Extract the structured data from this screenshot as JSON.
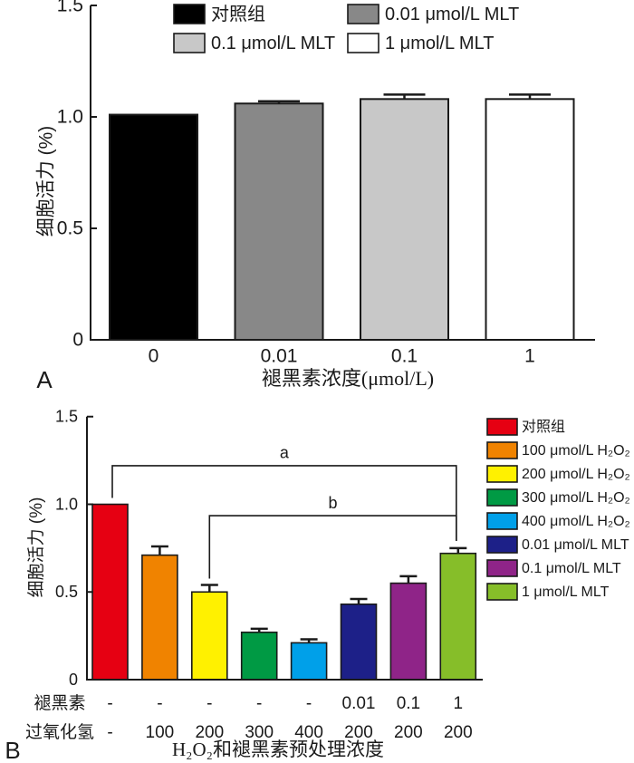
{
  "chart_data": [
    {
      "panel_label": "A",
      "type": "bar",
      "title": "",
      "xlabel": "褪黑素浓度(μmol/L)",
      "ylabel": "细胞活力 (%)",
      "ylim": [
        0,
        1.5
      ],
      "yticks": [
        0,
        0.5,
        1.0,
        1.5
      ],
      "ytick_labels": [
        "0",
        "0.5",
        "1.0",
        "1.5"
      ],
      "grid": false,
      "categories": [
        "0",
        "0.01",
        "0.1",
        "1"
      ],
      "values": [
        1.01,
        1.06,
        1.08,
        1.08
      ],
      "errors": [
        0,
        0.01,
        0.02,
        0.02
      ],
      "colors": [
        "#000000",
        "#888888",
        "#C8C8C8",
        "#FFFFFF"
      ],
      "legend": {
        "position": "top",
        "columns": 2,
        "entries": [
          {
            "label": "对照组",
            "color": "#000000"
          },
          {
            "label": "0.01 μmol/L MLT",
            "color": "#888888"
          },
          {
            "label": "0.1 μmol/L MLT",
            "color": "#C8C8C8"
          },
          {
            "label": "1 μmol/L MLT",
            "color": "#FFFFFF"
          }
        ]
      }
    },
    {
      "panel_label": "B",
      "type": "bar",
      "title": "",
      "xlabel": "H₂O₂和褪黑素预处理浓度",
      "ylabel": "细胞活力 (%)",
      "ylim": [
        0,
        1.5
      ],
      "yticks": [
        0,
        0.5,
        1.0,
        1.5
      ],
      "ytick_labels": [
        "0",
        "0.5",
        "1.0",
        "1.5"
      ],
      "grid": false,
      "categories": [
        "对照组",
        "100 μmol/L H₂O₂",
        "200 μmol/L H₂O₂",
        "300 μmol/L H₂O₂",
        "400 μmol/L H₂O₂",
        "0.01 μmol/L MLT",
        "0.1 μmol/L MLT",
        "1 μmol/L MLT"
      ],
      "values": [
        1.0,
        0.71,
        0.5,
        0.27,
        0.21,
        0.43,
        0.55,
        0.72
      ],
      "errors": [
        0,
        0.05,
        0.04,
        0.02,
        0.02,
        0.03,
        0.04,
        0.03
      ],
      "colors": [
        "#E60012",
        "#F08300",
        "#FFF100",
        "#009A44",
        "#00A0E9",
        "#1D2088",
        "#8F2488",
        "#86BE29"
      ],
      "legend": {
        "position": "right",
        "columns": 1,
        "entries": [
          {
            "label": "对照组",
            "color": "#E60012"
          },
          {
            "label": "100 μmol/L H₂O₂",
            "color": "#F08300"
          },
          {
            "label": "200 μmol/L H₂O₂",
            "color": "#FFF100"
          },
          {
            "label": "300 μmol/L H₂O₂",
            "color": "#009A44"
          },
          {
            "label": "400 μmol/L H₂O₂",
            "color": "#00A0E9"
          },
          {
            "label": "0.01 μmol/L MLT",
            "color": "#1D2088"
          },
          {
            "label": "0.1 μmol/L MLT",
            "color": "#8F2488"
          },
          {
            "label": "1 μmol/L MLT",
            "color": "#86BE29"
          }
        ]
      },
      "treatment_table": [
        {
          "label": "褪黑素",
          "values": [
            "-",
            "-",
            "-",
            "-",
            "-",
            "0.01",
            "0.1",
            "1"
          ]
        },
        {
          "label": "过氧化氢",
          "values": [
            "-",
            "100",
            "200",
            "300",
            "400",
            "200",
            "200",
            "200"
          ]
        }
      ],
      "annotations": [
        {
          "label": "a",
          "from_group": 0,
          "to_group": 7
        },
        {
          "label": "b",
          "from_group": 2,
          "to_group": 7
        }
      ]
    }
  ]
}
